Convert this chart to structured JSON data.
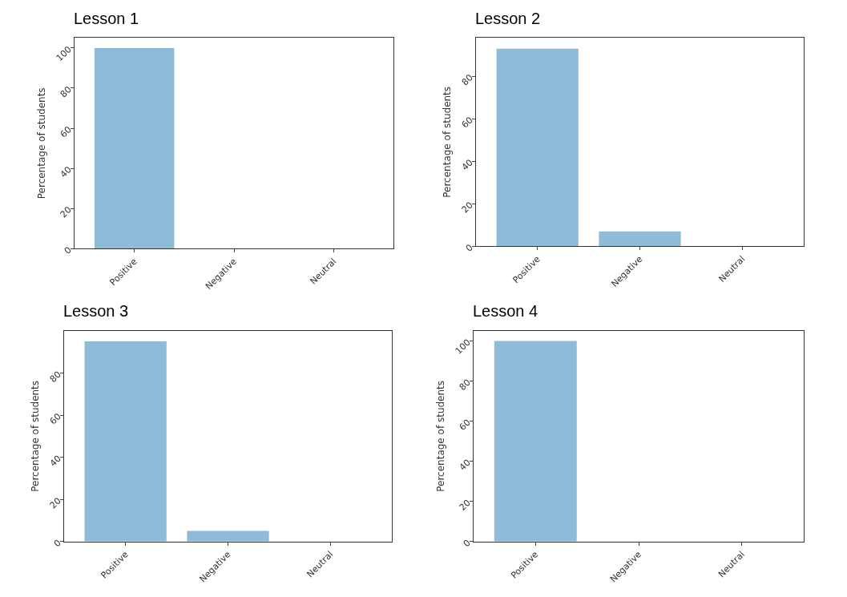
{
  "chart_data": [
    {
      "type": "bar",
      "title": "Lesson 1",
      "ylabel": "Percentage of students",
      "categories": [
        "Positive",
        "Negative",
        "Neutral"
      ],
      "values": [
        100,
        0,
        0
      ],
      "color": "#8fbbd9",
      "ylim": [
        0,
        105
      ],
      "yticks": [
        0,
        20,
        40,
        60,
        80,
        100
      ]
    },
    {
      "type": "bar",
      "title": "Lesson 2",
      "ylabel": "Percentage of students",
      "categories": [
        "Positive",
        "Negative",
        "Neutral"
      ],
      "values": [
        93,
        7,
        0
      ],
      "color": "#8fbbd9",
      "ylim": [
        0,
        98
      ],
      "yticks": [
        0,
        20,
        40,
        60,
        80
      ]
    },
    {
      "type": "bar",
      "title": "Lesson 3",
      "ylabel": "Percentage of students",
      "categories": [
        "Positive",
        "Negative",
        "Neutral"
      ],
      "values": [
        95,
        5,
        0
      ],
      "color": "#8fbbd9",
      "ylim": [
        0,
        100
      ],
      "yticks": [
        0,
        20,
        40,
        60,
        80
      ]
    },
    {
      "type": "bar",
      "title": "Lesson 4",
      "ylabel": "Percentage of students",
      "categories": [
        "Positive",
        "Negative",
        "Neutral"
      ],
      "values": [
        100,
        0,
        0
      ],
      "color": "#8fbbd9",
      "ylim": [
        0,
        105
      ],
      "yticks": [
        0,
        20,
        40,
        60,
        80,
        100
      ]
    }
  ]
}
